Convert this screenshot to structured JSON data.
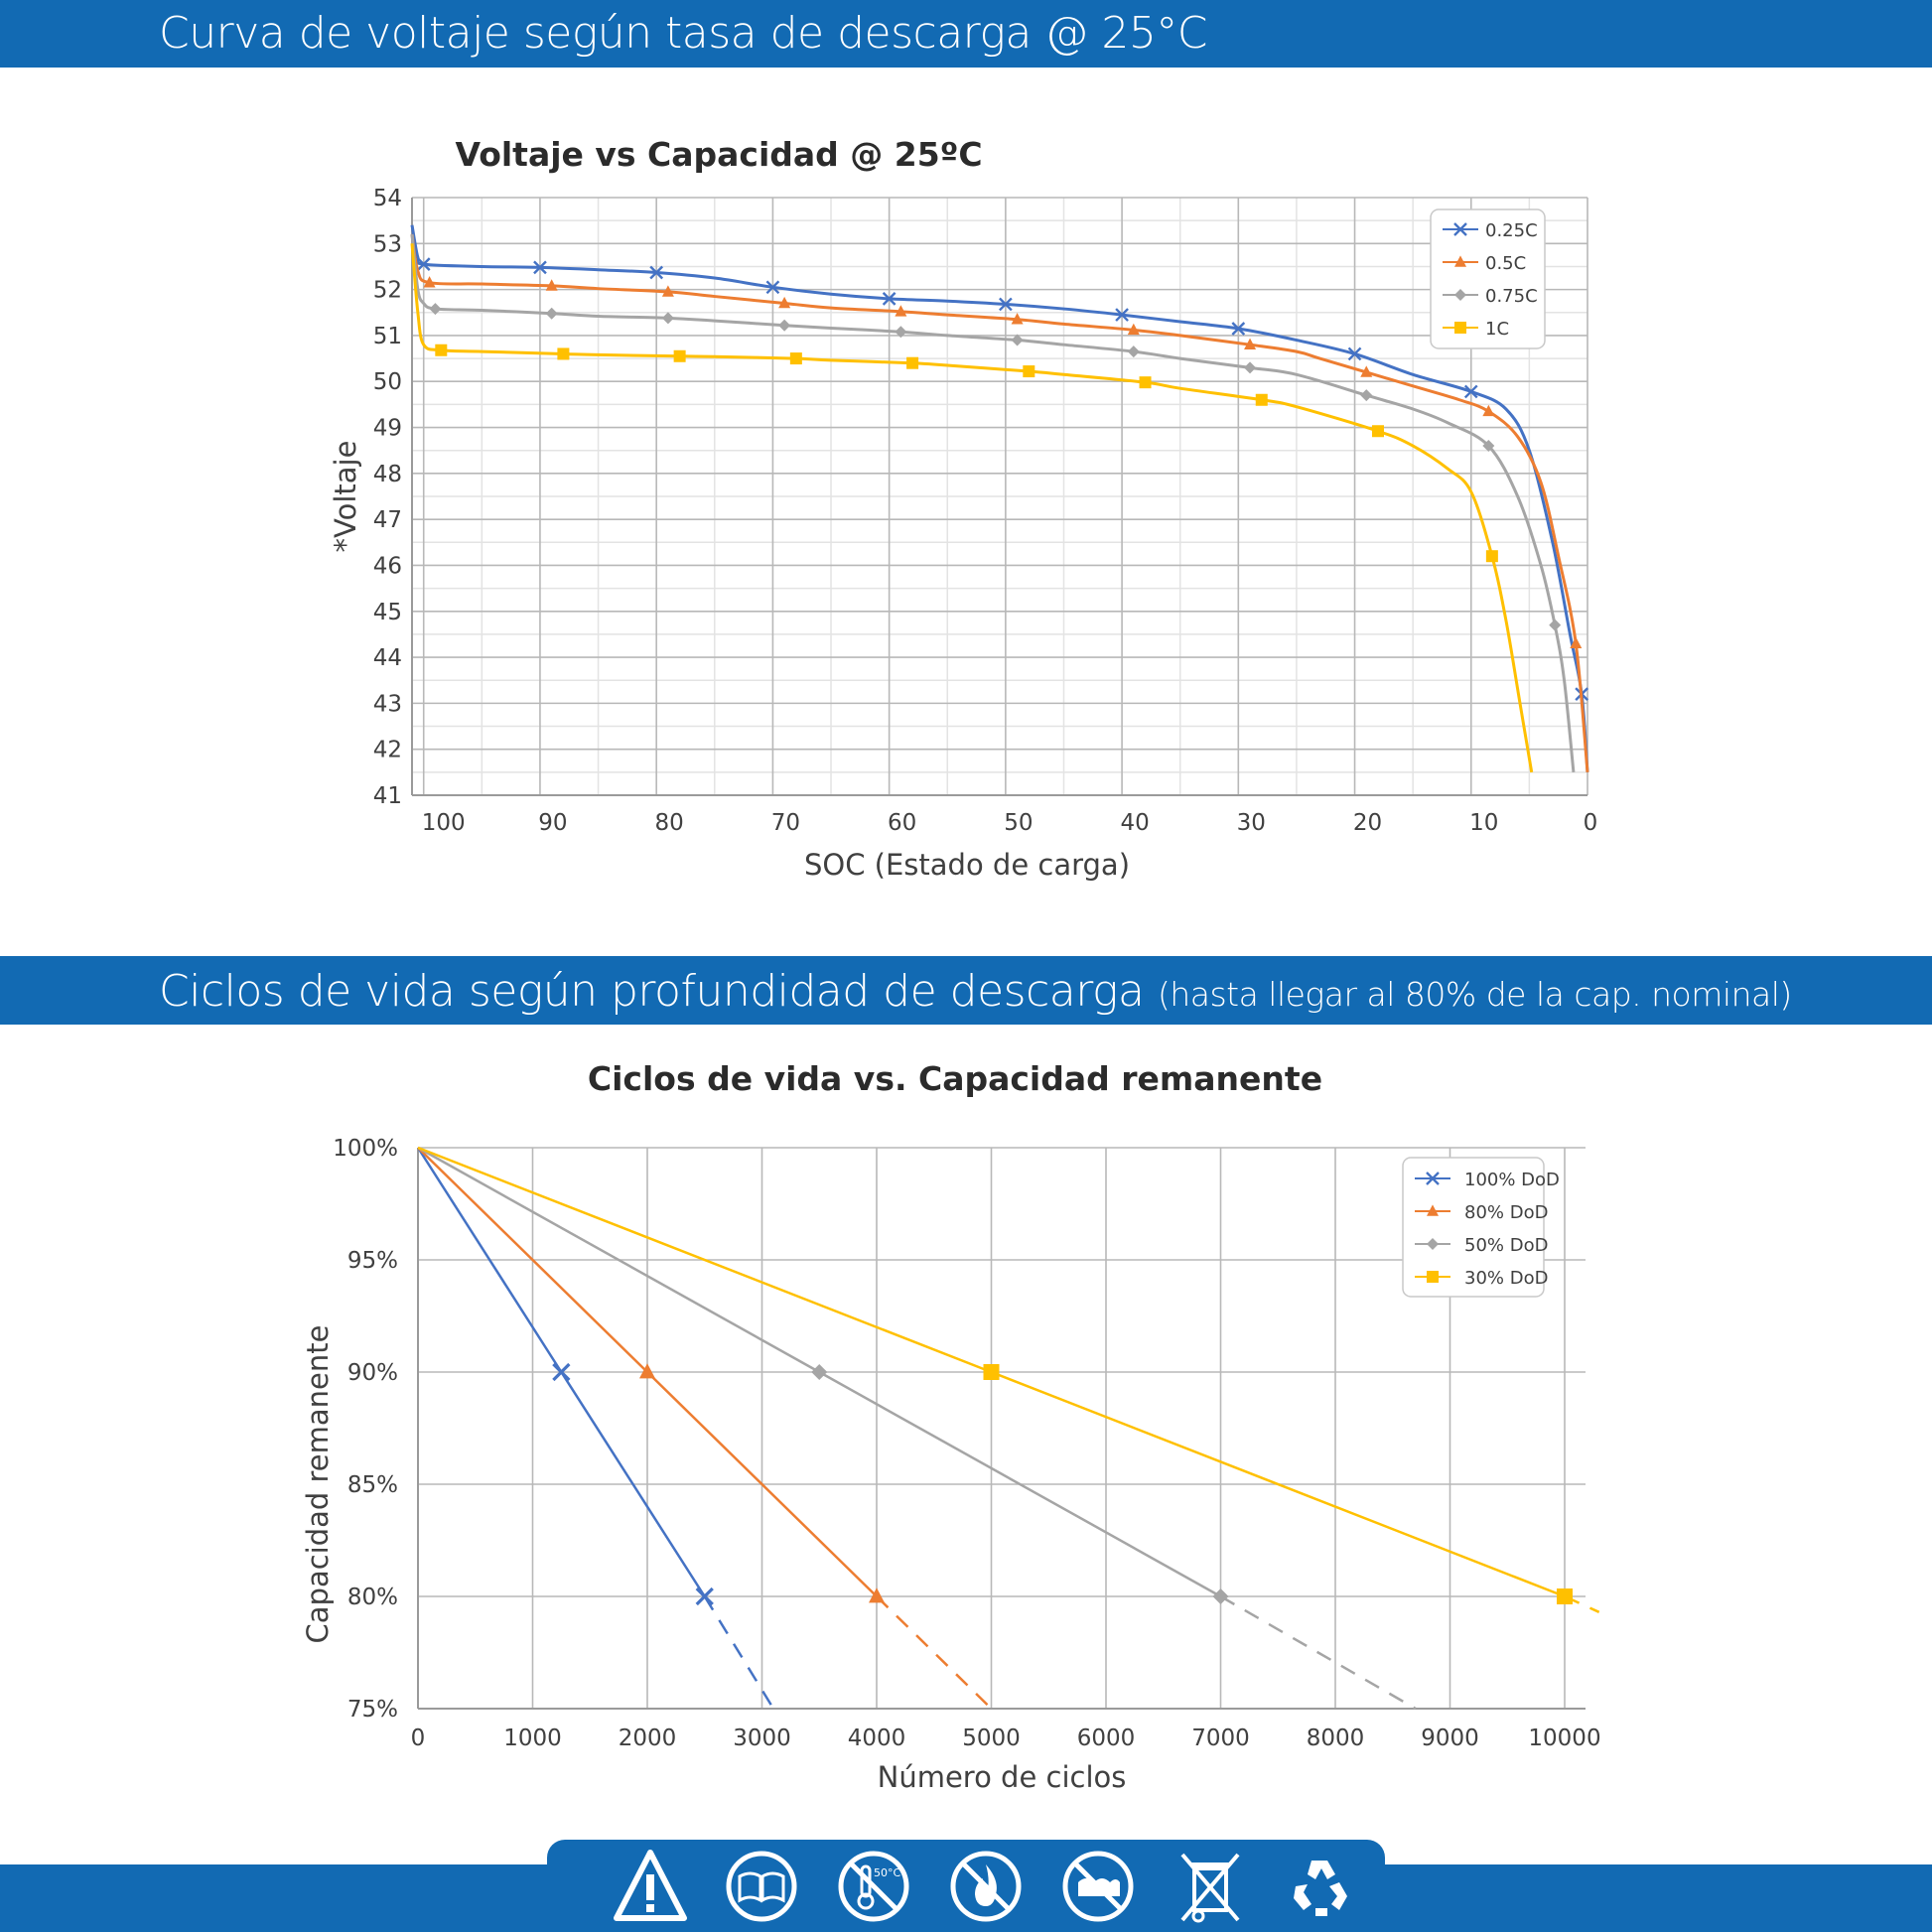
{
  "header1": {
    "title": "Curva de voltaje según tasa de descarga @ 25°C"
  },
  "header2": {
    "title": "Ciclos de vida según profundidad de descarga",
    "subtitle": "(hasta llegar al 80% de la cap. nominal)"
  },
  "chart_data": [
    {
      "type": "line",
      "title": "Voltaje vs Capacidad @ 25ºC",
      "xlabel": "SOC (Estado de carga)",
      "ylabel": "*Voltaje",
      "xlim": [
        101,
        0
      ],
      "ylim": [
        41,
        54
      ],
      "x_reversed": true,
      "xticks": [
        100,
        90,
        80,
        70,
        60,
        50,
        40,
        30,
        20,
        10,
        0
      ],
      "yticks": [
        41,
        42,
        43,
        44,
        45,
        46,
        47,
        48,
        49,
        50,
        51,
        52,
        53,
        54
      ],
      "grid": true,
      "legend": "top-right",
      "series": [
        {
          "name": "0.25C",
          "color": "#4472c4",
          "marker": "x",
          "points": [
            [
              101,
              53.4
            ],
            [
              100.5,
              52.7
            ],
            [
              100,
              52.55
            ],
            [
              95,
              52.5
            ],
            [
              90,
              52.48
            ],
            [
              85,
              52.43
            ],
            [
              80,
              52.37
            ],
            [
              75,
              52.25
            ],
            [
              70,
              52.05
            ],
            [
              65,
              51.9
            ],
            [
              60,
              51.8
            ],
            [
              55,
              51.75
            ],
            [
              50,
              51.68
            ],
            [
              45,
              51.58
            ],
            [
              40,
              51.45
            ],
            [
              35,
              51.3
            ],
            [
              30,
              51.15
            ],
            [
              25,
              50.9
            ],
            [
              20,
              50.6
            ],
            [
              15,
              50.15
            ],
            [
              10,
              49.78
            ],
            [
              7,
              49.4
            ],
            [
              5,
              48.5
            ],
            [
              3,
              46.5
            ],
            [
              1.5,
              44.5
            ],
            [
              0.5,
              43.2
            ],
            [
              0,
              41.5
            ]
          ],
          "markers": [
            [
              100,
              52.55
            ],
            [
              90,
              52.48
            ],
            [
              80,
              52.37
            ],
            [
              70,
              52.05
            ],
            [
              60,
              51.8
            ],
            [
              50,
              51.68
            ],
            [
              40,
              51.45
            ],
            [
              30,
              51.15
            ],
            [
              20,
              50.6
            ],
            [
              10,
              49.78
            ],
            [
              0.5,
              43.2
            ]
          ]
        },
        {
          "name": "0.5C",
          "color": "#ed7d31",
          "marker": "triangle",
          "points": [
            [
              101,
              53.2
            ],
            [
              100.5,
              52.4
            ],
            [
              99.5,
              52.15
            ],
            [
              95,
              52.12
            ],
            [
              89,
              52.08
            ],
            [
              85,
              52.02
            ],
            [
              79,
              51.95
            ],
            [
              75,
              51.85
            ],
            [
              69,
              51.7
            ],
            [
              65,
              51.6
            ],
            [
              59,
              51.52
            ],
            [
              55,
              51.45
            ],
            [
              49,
              51.35
            ],
            [
              45,
              51.25
            ],
            [
              39,
              51.12
            ],
            [
              35,
              51.0
            ],
            [
              29,
              50.8
            ],
            [
              25,
              50.65
            ],
            [
              23,
              50.5
            ],
            [
              19,
              50.2
            ],
            [
              15,
              49.9
            ],
            [
              11,
              49.6
            ],
            [
              8.5,
              49.35
            ],
            [
              6,
              48.8
            ],
            [
              4,
              47.8
            ],
            [
              2.5,
              46.2
            ],
            [
              1,
              44.3
            ],
            [
              0,
              41.5
            ]
          ],
          "markers": [
            [
              99.5,
              52.15
            ],
            [
              89,
              52.08
            ],
            [
              79,
              51.95
            ],
            [
              69,
              51.7
            ],
            [
              59,
              51.52
            ],
            [
              49,
              51.35
            ],
            [
              39,
              51.12
            ],
            [
              29,
              50.8
            ],
            [
              19,
              50.2
            ],
            [
              8.5,
              49.35
            ],
            [
              1,
              44.3
            ]
          ]
        },
        {
          "name": "0.75C",
          "color": "#a5a5a5",
          "marker": "diamond",
          "points": [
            [
              101,
              53.2
            ],
            [
              100.5,
              52.0
            ],
            [
              100,
              51.7
            ],
            [
              99,
              51.58
            ],
            [
              95,
              51.55
            ],
            [
              89,
              51.48
            ],
            [
              85,
              51.42
            ],
            [
              79,
              51.38
            ],
            [
              75,
              51.32
            ],
            [
              69,
              51.22
            ],
            [
              65,
              51.16
            ],
            [
              59,
              51.08
            ],
            [
              55,
              51.0
            ],
            [
              49,
              50.9
            ],
            [
              45,
              50.8
            ],
            [
              39,
              50.65
            ],
            [
              35,
              50.5
            ],
            [
              29,
              50.3
            ],
            [
              25,
              50.15
            ],
            [
              19,
              49.7
            ],
            [
              15,
              49.4
            ],
            [
              12,
              49.1
            ],
            [
              8.5,
              48.6
            ],
            [
              6,
              47.5
            ],
            [
              4,
              46.0
            ],
            [
              2.8,
              44.7
            ],
            [
              2,
              43.5
            ],
            [
              1.2,
              41.5
            ]
          ],
          "markers": [
            [
              99,
              51.58
            ],
            [
              89,
              51.48
            ],
            [
              79,
              51.38
            ],
            [
              69,
              51.22
            ],
            [
              59,
              51.08
            ],
            [
              49,
              50.9
            ],
            [
              39,
              50.65
            ],
            [
              29,
              50.3
            ],
            [
              19,
              49.7
            ],
            [
              8.5,
              48.6
            ],
            [
              2.8,
              44.7
            ]
          ]
        },
        {
          "name": "1C",
          "color": "#ffc000",
          "marker": "square",
          "points": [
            [
              101,
              53.0
            ],
            [
              100.5,
              51.5
            ],
            [
              100,
              50.8
            ],
            [
              98.5,
              50.68
            ],
            [
              95,
              50.65
            ],
            [
              88,
              50.6
            ],
            [
              85,
              50.58
            ],
            [
              78,
              50.55
            ],
            [
              75,
              50.54
            ],
            [
              68,
              50.5
            ],
            [
              65,
              50.46
            ],
            [
              58,
              50.4
            ],
            [
              55,
              50.35
            ],
            [
              48,
              50.22
            ],
            [
              45,
              50.15
            ],
            [
              38,
              49.98
            ],
            [
              35,
              49.85
            ],
            [
              28,
              49.6
            ],
            [
              25,
              49.45
            ],
            [
              18,
              48.92
            ],
            [
              15,
              48.6
            ],
            [
              12,
              48.1
            ],
            [
              10,
              47.6
            ],
            [
              8.2,
              46.2
            ],
            [
              7,
              44.8
            ],
            [
              5.8,
              43.0
            ],
            [
              4.8,
              41.5
            ]
          ],
          "markers": [
            [
              98.5,
              50.68
            ],
            [
              88,
              50.6
            ],
            [
              78,
              50.55
            ],
            [
              68,
              50.5
            ],
            [
              58,
              50.4
            ],
            [
              48,
              50.22
            ],
            [
              38,
              49.98
            ],
            [
              28,
              49.6
            ],
            [
              18,
              48.92
            ],
            [
              8.2,
              46.2
            ]
          ]
        }
      ]
    },
    {
      "type": "line",
      "title": "Ciclos de vida vs. Capacidad remanente",
      "xlabel": "Número de ciclos",
      "ylabel": "Capacidad remanente",
      "xlim": [
        0,
        10000
      ],
      "ylim": [
        75,
        100
      ],
      "xticks": [
        0,
        1000,
        2000,
        3000,
        4000,
        5000,
        6000,
        7000,
        8000,
        9000,
        10000
      ],
      "yticks": [
        75,
        80,
        85,
        90,
        95,
        100
      ],
      "ytick_labels": [
        "75%",
        "80%",
        "85%",
        "90%",
        "95%",
        "100%"
      ],
      "grid": true,
      "legend": "top-right",
      "series": [
        {
          "name": "100% DoD",
          "color": "#4472c4",
          "marker": "x",
          "points": [
            [
              0,
              100
            ],
            [
              1250,
              90
            ],
            [
              2500,
              80
            ]
          ],
          "extrapolated": [
            [
              2500,
              80
            ],
            [
              3100,
              75
            ]
          ],
          "markers": [
            [
              1250,
              90
            ],
            [
              2500,
              80
            ]
          ]
        },
        {
          "name": "80% DoD",
          "color": "#ed7d31",
          "marker": "triangle",
          "points": [
            [
              0,
              100
            ],
            [
              2000,
              90
            ],
            [
              4000,
              80
            ]
          ],
          "extrapolated": [
            [
              4000,
              80
            ],
            [
              5000,
              75
            ]
          ],
          "markers": [
            [
              2000,
              90
            ],
            [
              4000,
              80
            ]
          ]
        },
        {
          "name": "50% DoD",
          "color": "#a5a5a5",
          "marker": "diamond",
          "points": [
            [
              0,
              100
            ],
            [
              3500,
              90
            ],
            [
              7000,
              80
            ]
          ],
          "extrapolated": [
            [
              7000,
              80
            ],
            [
              8700,
              75
            ]
          ],
          "markers": [
            [
              3500,
              90
            ],
            [
              7000,
              80
            ]
          ]
        },
        {
          "name": "30% DoD",
          "color": "#ffc000",
          "marker": "square",
          "points": [
            [
              0,
              100
            ],
            [
              5000,
              90
            ],
            [
              10000,
              80
            ]
          ],
          "extrapolated": [
            [
              10000,
              80
            ],
            [
              10300,
              79.3
            ]
          ],
          "markers": [
            [
              5000,
              90
            ],
            [
              10000,
              80
            ]
          ]
        }
      ]
    }
  ],
  "footer": {
    "icons": [
      "warning-icon",
      "read-manual-icon",
      "temperature-limit-icon",
      "no-fire-icon",
      "no-water-icon",
      "no-trash-icon",
      "recycle-icon"
    ],
    "temperature_text": "50°C"
  }
}
